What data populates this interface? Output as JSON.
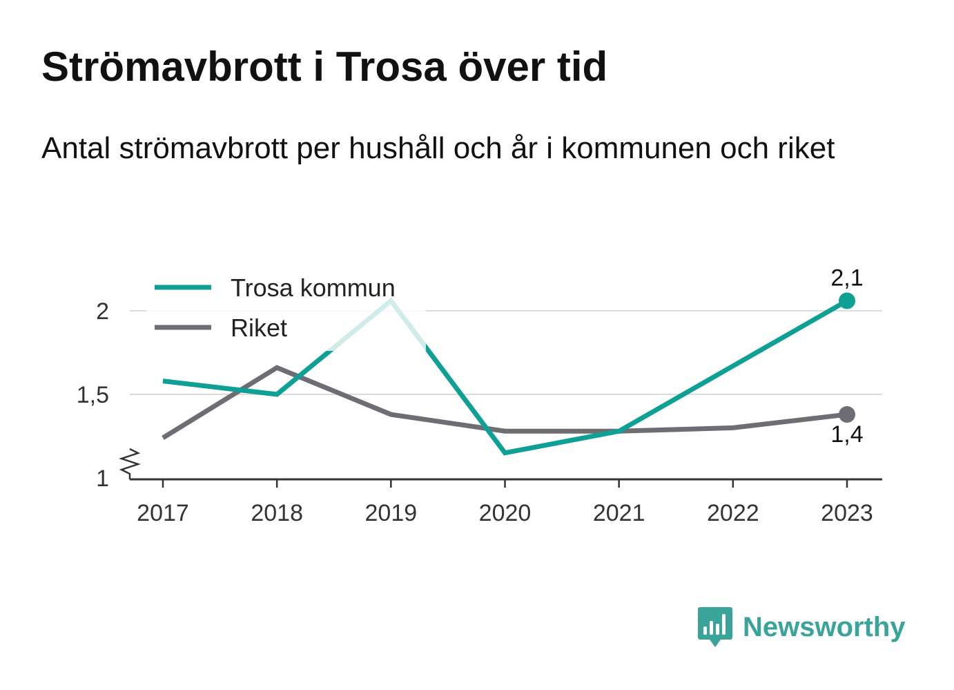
{
  "header": {
    "title": "Strömavbrott i Trosa över tid",
    "subtitle": "Antal strömavbrott per hushåll och år i kommunen och riket"
  },
  "brand": {
    "name": "Newsworthy",
    "icon": "bar-chart-speech-bubble-icon",
    "color": "#3aa39a"
  },
  "chart_data": {
    "type": "line",
    "title": "",
    "xlabel": "",
    "ylabel": "",
    "categories": [
      "2017",
      "2018",
      "2019",
      "2020",
      "2021",
      "2022",
      "2023"
    ],
    "ylim": [
      1,
      2.2
    ],
    "yticks": [
      1,
      1.5,
      2
    ],
    "ytick_labels": [
      "1",
      "1,5",
      "2"
    ],
    "y_axis_break": true,
    "grid": true,
    "legend": "top-left",
    "series": [
      {
        "name": "Trosa kommun",
        "color": "#0fa095",
        "values": [
          1.58,
          1.5,
          2.06,
          1.15,
          1.28,
          1.67,
          2.06
        ],
        "end_label": "2,1"
      },
      {
        "name": "Riket",
        "color": "#6e6d73",
        "values": [
          1.24,
          1.66,
          1.38,
          1.28,
          1.28,
          1.3,
          1.38
        ],
        "end_label": "1,4"
      }
    ]
  }
}
